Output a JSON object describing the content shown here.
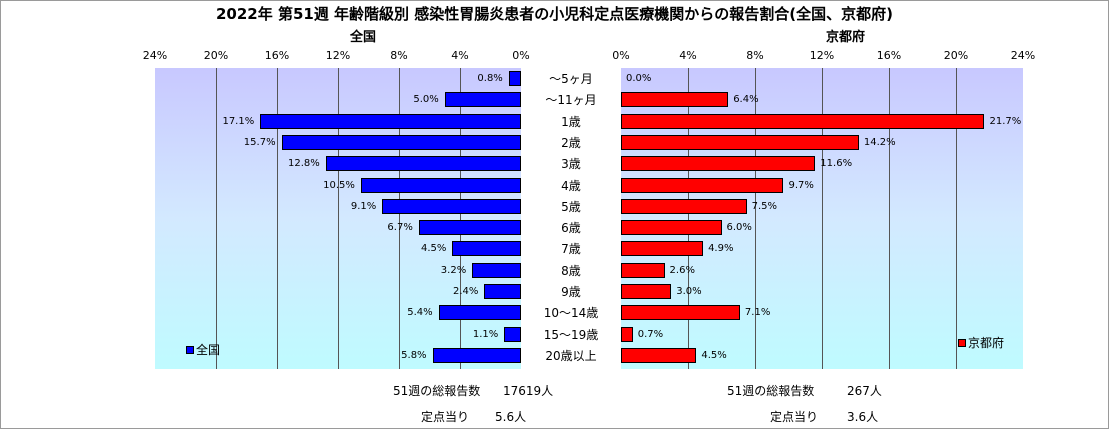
{
  "title": "2022年 第51週 年齢階級別 感染性胃腸炎患者の小児科定点医療機関からの報告割合(全国、京都府)",
  "colors": {
    "zenkoku": "#0000ff",
    "kyoto": "#ff0000"
  },
  "chart_data": {
    "type": "bar",
    "categories": [
      "～5ヶ月",
      "～11ヶ月",
      "1歳",
      "2歳",
      "3歳",
      "4歳",
      "5歳",
      "6歳",
      "7歳",
      "8歳",
      "9歳",
      "10～14歳",
      "15～19歳",
      "20歳以上"
    ],
    "xlim": [
      0,
      24
    ],
    "grid": true,
    "panels": [
      {
        "title": "全国",
        "side": "left",
        "ticks": [
          "24%",
          "20%",
          "16%",
          "12%",
          "8%",
          "4%",
          "0%"
        ],
        "series": [
          {
            "name": "全国",
            "values": [
              0.8,
              5.0,
              17.1,
              15.7,
              12.8,
              10.5,
              9.1,
              6.7,
              4.5,
              3.2,
              2.4,
              5.4,
              1.1,
              5.8
            ]
          }
        ],
        "labels": [
          "0.8%",
          "5.0%",
          "17.1%",
          "15.7%",
          "12.8%",
          "10.5%",
          "9.1%",
          "6.7%",
          "4.5%",
          "3.2%",
          "2.4%",
          "5.4%",
          "1.1%",
          "5.8%"
        ],
        "legend": "bottom-left"
      },
      {
        "title": "京都府",
        "side": "right",
        "ticks": [
          "0%",
          "4%",
          "8%",
          "12%",
          "16%",
          "20%",
          "24%"
        ],
        "series": [
          {
            "name": "京都府",
            "values": [
              0.0,
              6.4,
              21.7,
              14.2,
              11.6,
              9.7,
              7.5,
              6.0,
              4.9,
              2.6,
              3.0,
              7.1,
              0.7,
              4.5
            ]
          }
        ],
        "labels": [
          "0.0%",
          "6.4%",
          "21.7%",
          "14.2%",
          "11.6%",
          "9.7%",
          "7.5%",
          "6.0%",
          "4.9%",
          "2.6%",
          "3.0%",
          "7.1%",
          "0.7%",
          "4.5%"
        ],
        "legend": "bottom-right"
      }
    ]
  },
  "footer": {
    "zenkoku": {
      "total_label": "51週の総報告数",
      "total_value": "17619人",
      "per_label": "定点当り",
      "per_value": "5.6人"
    },
    "kyoto": {
      "total_label": "51週の総報告数",
      "total_value": "267人",
      "per_label": "定点当り",
      "per_value": "3.6人"
    }
  }
}
